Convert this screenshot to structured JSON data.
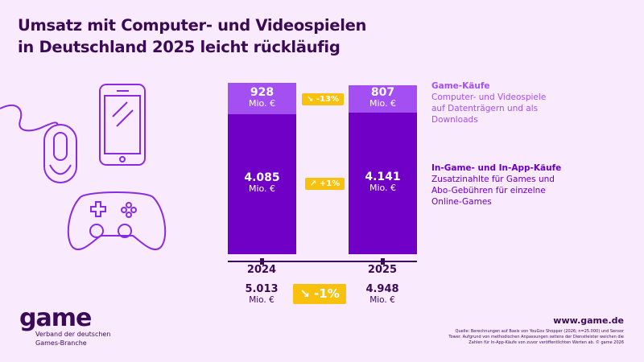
{
  "title_lines": [
    "Umsatz mit Computer- und Videospielen",
    "in Deutschland 2025 leicht rückläufig"
  ],
  "colors": {
    "background": "#f9eafd",
    "game_kaeufe": "#a44ff2",
    "in_game": "#7000c6",
    "badge": "#f7c10d",
    "title": "#3b0a57"
  },
  "chart_data": {
    "type": "bar",
    "stacked": true,
    "categories": [
      "2024",
      "2025"
    ],
    "series": [
      {
        "name": "In-Game- und In-App-Käufe",
        "values": [
          4085,
          4141
        ],
        "labels": [
          "4.085",
          "4.141"
        ],
        "color": "#7000c6"
      },
      {
        "name": "Game-Käufe",
        "values": [
          928,
          807
        ],
        "labels": [
          "928",
          "807"
        ],
        "color": "#a44ff2"
      }
    ],
    "unit": "Mio. €",
    "totals": {
      "values": [
        5013,
        4948
      ],
      "labels": [
        "5.013",
        "4.948"
      ]
    },
    "changes": {
      "game_kaeufe": "-13%",
      "in_game": "+1%",
      "total": "-1%"
    }
  },
  "legend": [
    {
      "title": "Game-Käufe",
      "lines": [
        "Computer- und Videospiele",
        "auf Datenträgern und als",
        "Downloads"
      ]
    },
    {
      "title": "In-Game- und In-App-Käufe",
      "lines": [
        "Zusatzinahlte für Games und",
        "Abo-Gebühren für einzelne",
        "Online-Games"
      ]
    }
  ],
  "icons": [
    "mouse-icon",
    "smartphone-icon",
    "gamepad-icon"
  ],
  "footer": {
    "logo": "game",
    "org_lines": [
      "Verband der deutschen",
      "Games-Branche"
    ],
    "website": "www.game.de",
    "source_lines": [
      "Quelle: Berechnungen auf Basis von YouGov Shopper (2026; n=25.000) und Sensor",
      "Tower. Aufgrund von methodischen Anpassungen seitens der Dienstleister weichen die",
      "Zahlen für In-App-Käufe von zuvor veröffentlichten Werten ab. © game 2026"
    ]
  }
}
